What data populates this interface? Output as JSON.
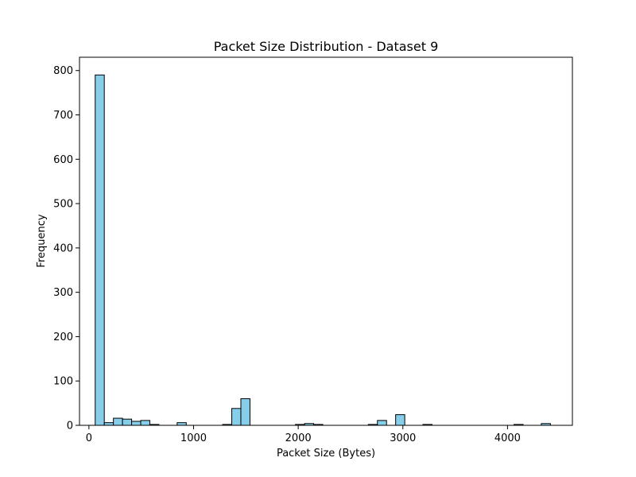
{
  "chart_data": {
    "type": "bar",
    "title": "Packet Size Distribution - Dataset 9",
    "xlabel": "Packet Size (Bytes)",
    "ylabel": "Frequency",
    "xlim": [
      -90,
      4620
    ],
    "ylim": [
      0,
      830
    ],
    "xticks": [
      0,
      1000,
      2000,
      3000,
      4000
    ],
    "yticks": [
      0,
      100,
      200,
      300,
      400,
      500,
      600,
      700,
      800
    ],
    "bin_width": 87,
    "bins": [
      {
        "x0": 60,
        "value": 790
      },
      {
        "x0": 147,
        "value": 6
      },
      {
        "x0": 234,
        "value": 16
      },
      {
        "x0": 321,
        "value": 14
      },
      {
        "x0": 408,
        "value": 9
      },
      {
        "x0": 495,
        "value": 11
      },
      {
        "x0": 582,
        "value": 2
      },
      {
        "x0": 843,
        "value": 6
      },
      {
        "x0": 1278,
        "value": 2
      },
      {
        "x0": 1365,
        "value": 38
      },
      {
        "x0": 1452,
        "value": 60
      },
      {
        "x0": 1974,
        "value": 2
      },
      {
        "x0": 2061,
        "value": 4
      },
      {
        "x0": 2148,
        "value": 2
      },
      {
        "x0": 2670,
        "value": 2
      },
      {
        "x0": 2757,
        "value": 11
      },
      {
        "x0": 2931,
        "value": 24
      },
      {
        "x0": 3192,
        "value": 2
      },
      {
        "x0": 4062,
        "value": 2
      },
      {
        "x0": 4323,
        "value": 4
      }
    ],
    "bar_color": "#87ceeb",
    "edge_color": "#000000",
    "grid": false,
    "legend": "none"
  }
}
